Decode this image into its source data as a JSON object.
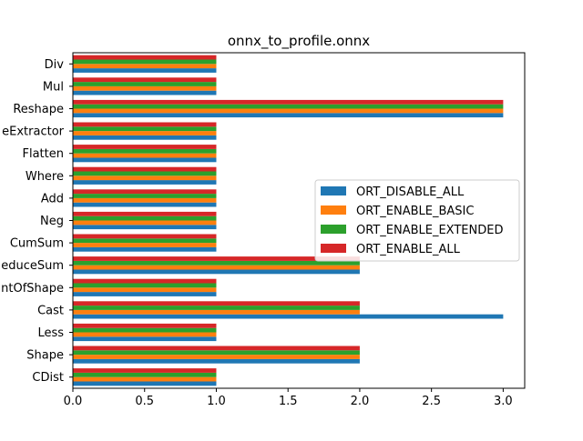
{
  "chart_data": {
    "type": "bar",
    "orientation": "horizontal",
    "title": "onnx_to_profile.onnx",
    "xlabel": "",
    "ylabel": "",
    "xlim": [
      0,
      3.15
    ],
    "xticks": [
      0.0,
      0.5,
      1.0,
      1.5,
      2.0,
      2.5,
      3.0
    ],
    "xtick_labels": [
      "0.0",
      "0.5",
      "1.0",
      "1.5",
      "2.0",
      "2.5",
      "3.0"
    ],
    "categories": [
      "Div",
      "Mul",
      "Reshape",
      "eExtractor",
      "Flatten",
      "Where",
      "Add",
      "Neg",
      "CumSum",
      "educeSum",
      "ntOfShape",
      "Cast",
      "Less",
      "Shape",
      "CDist"
    ],
    "series": [
      {
        "name": "ORT_DISABLE_ALL",
        "color": "#1f77b4",
        "values": [
          1,
          1,
          3,
          1,
          1,
          1,
          1,
          1,
          1,
          2,
          1,
          3,
          1,
          2,
          1
        ]
      },
      {
        "name": "ORT_ENABLE_BASIC",
        "color": "#ff7f0e",
        "values": [
          1,
          1,
          3,
          1,
          1,
          1,
          1,
          1,
          1,
          2,
          1,
          2,
          1,
          2,
          1
        ]
      },
      {
        "name": "ORT_ENABLE_EXTENDED",
        "color": "#2ca02c",
        "values": [
          1,
          1,
          3,
          1,
          1,
          1,
          1,
          1,
          1,
          2,
          1,
          2,
          1,
          2,
          1
        ]
      },
      {
        "name": "ORT_ENABLE_ALL",
        "color": "#d62728",
        "values": [
          1,
          1,
          3,
          1,
          1,
          1,
          1,
          1,
          1,
          2,
          1,
          2,
          1,
          2,
          1
        ]
      }
    ],
    "legend_position": "center-right",
    "grid": false
  }
}
